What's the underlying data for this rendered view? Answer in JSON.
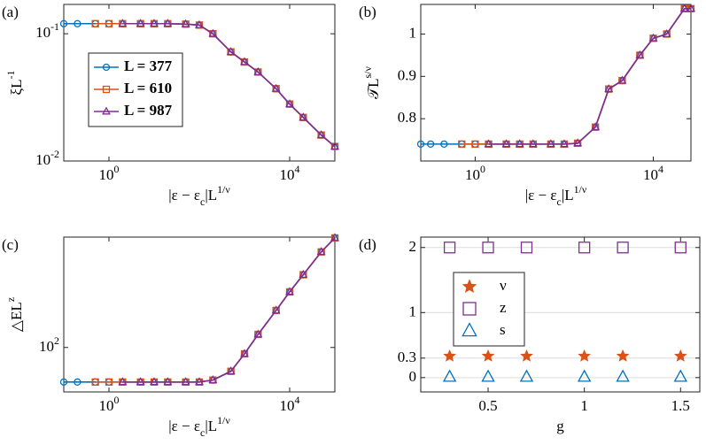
{
  "chart_data": [
    {
      "type": "line",
      "label": "(a)",
      "xlabel": "|ε − ε_{c}|L^{1/ν}",
      "ylabel": "ξL^{-1}",
      "xscale": "log",
      "yscale": "log",
      "x": [
        0.1,
        0.2,
        0.5,
        1,
        2,
        5,
        10,
        20,
        50,
        100,
        200,
        500,
        1000,
        2000,
        5000,
        10000,
        20000,
        50000,
        100000
      ],
      "series": [
        {
          "name": "L = 377",
          "color": "#0072BD",
          "marker": "o",
          "values": [
            0.12,
            0.12,
            0.12,
            0.12,
            0.12,
            0.12,
            0.12,
            0.12,
            0.119,
            0.117,
            0.1,
            0.072,
            0.06,
            0.05,
            0.037,
            0.028,
            0.022,
            0.016,
            0.013
          ]
        },
        {
          "name": "L = 610",
          "color": "#D95319",
          "marker": "s",
          "values": [
            null,
            null,
            0.12,
            0.12,
            0.12,
            0.12,
            0.12,
            0.12,
            0.119,
            0.117,
            0.1,
            0.072,
            0.06,
            0.05,
            0.037,
            0.028,
            0.022,
            0.016,
            0.013
          ]
        },
        {
          "name": "L = 987",
          "color": "#7E2F8E",
          "marker": "^",
          "values": [
            null,
            null,
            null,
            null,
            0.12,
            0.12,
            0.12,
            0.12,
            0.119,
            0.117,
            0.1,
            0.072,
            0.06,
            0.05,
            0.037,
            0.028,
            0.022,
            0.016,
            0.013
          ]
        }
      ],
      "xlim": [
        0.1,
        100000
      ],
      "ylim": [
        0.01,
        0.17
      ],
      "xticks": [
        {
          "value": 1,
          "label": "10^{0}"
        },
        {
          "value": 10000,
          "label": "10^{4}"
        }
      ],
      "yticks": [
        {
          "value": 0.01,
          "label": "10^{-2}"
        },
        {
          "value": 0.1,
          "label": "10^{-1}"
        }
      ],
      "legend": "left"
    },
    {
      "type": "line",
      "label": "(b)",
      "xlabel": "|ε − ε_{c}|L^{1/ν}",
      "ylabel": "𝒯L^{s/ν}",
      "xscale": "log",
      "yscale": "linear",
      "x": [
        0.06,
        0.1,
        0.2,
        0.5,
        1,
        2,
        5,
        10,
        20,
        50,
        100,
        200,
        500,
        1000,
        2000,
        5000,
        10000,
        20000,
        50000,
        70000
      ],
      "series": [
        {
          "name": "L = 377",
          "color": "#0072BD",
          "marker": "o",
          "values": [
            0.74,
            0.74,
            0.74,
            0.74,
            0.74,
            0.74,
            0.74,
            0.74,
            0.74,
            0.74,
            0.74,
            0.742,
            0.78,
            0.87,
            0.89,
            0.95,
            0.99,
            1.0,
            1.06,
            1.06
          ]
        },
        {
          "name": "L = 610",
          "color": "#D95319",
          "marker": "s",
          "values": [
            null,
            null,
            null,
            0.74,
            0.74,
            0.74,
            0.74,
            0.74,
            0.74,
            0.74,
            0.74,
            0.742,
            0.78,
            0.87,
            0.89,
            0.95,
            0.99,
            1.0,
            1.06,
            1.06
          ]
        },
        {
          "name": "L = 987",
          "color": "#7E2F8E",
          "marker": "^",
          "values": [
            null,
            null,
            null,
            null,
            null,
            0.74,
            0.74,
            0.74,
            0.74,
            0.74,
            0.74,
            0.742,
            0.78,
            0.87,
            0.89,
            0.95,
            0.99,
            1.0,
            1.06,
            1.06
          ]
        }
      ],
      "xlim": [
        0.06,
        70000
      ],
      "ylim": [
        0.7,
        1.07
      ],
      "xticks": [
        {
          "value": 1,
          "label": "10^{0}"
        },
        {
          "value": 10000,
          "label": "10^{4}"
        }
      ],
      "yticks": [
        0.8,
        0.9,
        1
      ]
    },
    {
      "type": "line",
      "label": "(c)",
      "xlabel": "|ε − ε_{c}|L^{1/ν}",
      "ylabel": "△EL^{z}",
      "xscale": "log",
      "yscale": "log",
      "x": [
        0.1,
        0.2,
        0.5,
        1,
        2,
        5,
        10,
        20,
        50,
        100,
        200,
        500,
        1000,
        2000,
        5000,
        10000,
        20000,
        50000,
        100000
      ],
      "series": [
        {
          "name": "L = 377",
          "color": "#0072BD",
          "marker": "o",
          "values": [
            50,
            50,
            50,
            50,
            50,
            50,
            50,
            50,
            50,
            50,
            52,
            62,
            88,
            130,
            210,
            305,
            430,
            680,
            900
          ]
        },
        {
          "name": "L = 610",
          "color": "#D95319",
          "marker": "s",
          "values": [
            null,
            null,
            50,
            50,
            50,
            50,
            50,
            50,
            50,
            50,
            52,
            62,
            88,
            130,
            210,
            305,
            430,
            680,
            900
          ]
        },
        {
          "name": "L = 987",
          "color": "#7E2F8E",
          "marker": "^",
          "values": [
            null,
            null,
            null,
            null,
            50,
            50,
            50,
            50,
            50,
            50,
            52,
            62,
            88,
            130,
            210,
            305,
            430,
            680,
            900
          ]
        }
      ],
      "xlim": [
        0.1,
        100000
      ],
      "ylim": [
        41,
        915
      ],
      "xticks": [
        {
          "value": 1,
          "label": "10^{0}"
        },
        {
          "value": 10000,
          "label": "10^{4}"
        }
      ],
      "yticks": [
        {
          "value": 100,
          "label": "10^{2}"
        }
      ]
    },
    {
      "type": "scatter",
      "label": "(d)",
      "xlabel": "g",
      "xscale": "linear",
      "yscale": "linear",
      "x": [
        0.3,
        0.5,
        0.7,
        1,
        1.2,
        1.5
      ],
      "series": [
        {
          "name": "ν",
          "color": "#D95319",
          "marker": "*",
          "values": [
            0.33,
            0.33,
            0.33,
            0.33,
            0.33,
            0.33
          ]
        },
        {
          "name": "z",
          "color": "#7E2F8E",
          "marker": "s",
          "values": [
            2,
            2,
            2,
            2,
            2,
            2
          ]
        },
        {
          "name": "s",
          "color": "#0072BD",
          "marker": "^",
          "values": [
            0.01,
            0.01,
            0.01,
            0.01,
            0.01,
            0.01
          ]
        }
      ],
      "xlim": [
        0.15,
        1.6
      ],
      "ylim": [
        -0.22,
        2.16
      ],
      "xticks": [
        0.5,
        1,
        1.5
      ],
      "yticks": [
        0,
        0.3,
        1,
        2
      ],
      "grid": true,
      "legend": "left"
    }
  ]
}
